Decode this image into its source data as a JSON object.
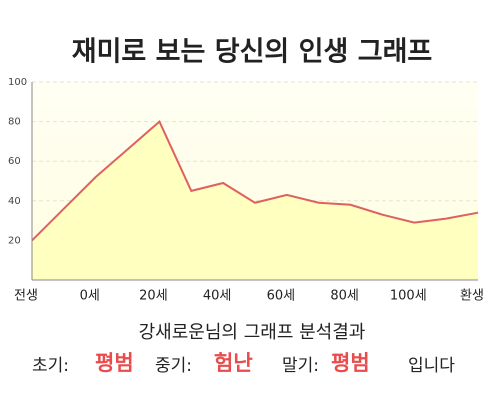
{
  "chart_data": {
    "type": "line",
    "title": "재미로 보는 당신의 인생 그래프",
    "categories": [
      "전생",
      null,
      "0세",
      null,
      "20세",
      null,
      "40세",
      null,
      "60세",
      null,
      "80세",
      null,
      "100세",
      null,
      "환생"
    ],
    "values": [
      20,
      36,
      52,
      66,
      80,
      45,
      49,
      39,
      43,
      39,
      38,
      33,
      29,
      31,
      34
    ],
    "color": "#e06060",
    "fill": "#ffffc0",
    "ylim": [
      0,
      100
    ],
    "yticks": [
      20,
      40,
      60,
      80,
      100
    ],
    "grid": true
  },
  "result": {
    "heading": "강새로운님의 그래프 분석결과",
    "early_label": "초기:",
    "early": "평범",
    "middle_label": "중기:",
    "middle": "험난",
    "late_label": "말기:",
    "late": "평범",
    "ending": "입니다"
  }
}
